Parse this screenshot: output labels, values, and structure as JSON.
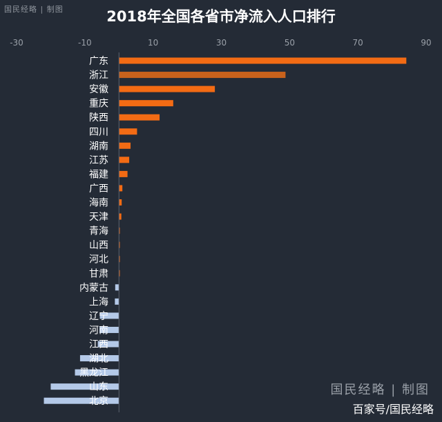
{
  "header": {
    "badge": "国民经略 | 制图",
    "title": "2018年全国各省市净流入人口排行"
  },
  "footer": {
    "badge": "国民经略 | 制图",
    "source": "百家号/国民经略"
  },
  "colors": {
    "background": "#242b36",
    "positive": "#f36b14",
    "highlight": "#c8621c",
    "negative": "#b4c9e8",
    "axis": "#9aa0a8"
  },
  "chart_data": {
    "type": "bar",
    "orientation": "horizontal",
    "title": "2018年全国各省市净流入人口排行",
    "xlabel": "",
    "ylabel": "",
    "xlim": [
      -30,
      90
    ],
    "xticks": [
      -30,
      -10,
      10,
      30,
      50,
      70,
      90
    ],
    "grid": false,
    "categories": [
      "广东",
      "浙江",
      "安徽",
      "重庆",
      "陕西",
      "四川",
      "湖南",
      "江苏",
      "福建",
      "广西",
      "海南",
      "天津",
      "青海",
      "山西",
      "河北",
      "甘肃",
      "内蒙古",
      "上海",
      "辽宁",
      "河南",
      "江西",
      "湖北",
      "黑龙江",
      "山东",
      "北京"
    ],
    "values": [
      84.2,
      48.8,
      28.1,
      15.9,
      11.9,
      5.3,
      3.4,
      3.0,
      2.5,
      1.0,
      0.8,
      0.7,
      0.2,
      0.1,
      0.1,
      0.1,
      -1.1,
      -1.2,
      -5.6,
      -5.7,
      -6.2,
      -11.4,
      -12.9,
      -20.0,
      -22.0
    ]
  }
}
